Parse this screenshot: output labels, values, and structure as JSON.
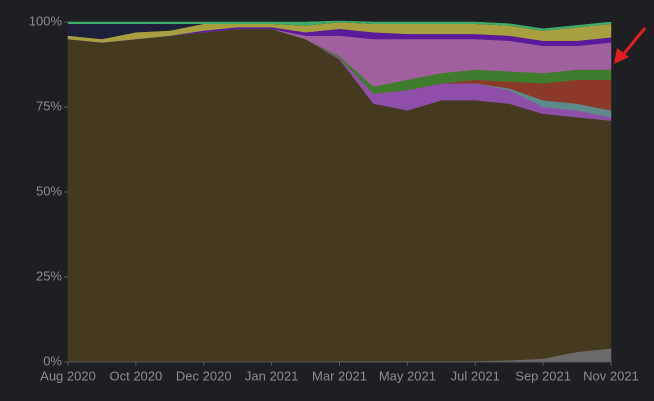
{
  "chart_data": {
    "type": "stacked_area",
    "categories": [
      "Aug 2020",
      null,
      "Oct 2020",
      null,
      "Dec 2020",
      null,
      "Jan 2021",
      null,
      "Mar 2021",
      null,
      "May 2021",
      null,
      "Jul 2021",
      null,
      "Sep 2021",
      null,
      "Nov 2021"
    ],
    "ylim": [
      0,
      100
    ],
    "yticks": [
      {
        "value": 0,
        "label": "0%"
      },
      {
        "value": 25,
        "label": "25%"
      },
      {
        "value": 50,
        "label": "50%"
      },
      {
        "value": 75,
        "label": "75%"
      },
      {
        "value": 100,
        "label": "100%"
      }
    ],
    "series": [
      {
        "color": "#6b6a66",
        "values": [
          0,
          0,
          0,
          0,
          0,
          0,
          0,
          0,
          0.3,
          0.3,
          0.3,
          0.3,
          0.3,
          0.5,
          1,
          3,
          4
        ]
      },
      {
        "color": "#433a1f",
        "values": [
          95,
          94,
          95,
          96,
          97,
          98,
          98,
          95,
          88.7,
          75.7,
          73.7,
          76.7,
          76.7,
          75.5,
          72,
          69,
          67
        ]
      },
      {
        "color": "#8e4fa8",
        "values": [
          0,
          0,
          0,
          0,
          0,
          0,
          0,
          0,
          0.5,
          3,
          6,
          5,
          5,
          4,
          2,
          2,
          1
        ]
      },
      {
        "color": "#5f8a8c",
        "values": [
          0,
          0,
          0,
          0,
          0,
          0,
          0,
          0,
          0,
          0,
          0,
          0,
          0,
          0.5,
          2,
          2,
          2
        ]
      },
      {
        "color": "#8b3a2a",
        "values": [
          0,
          0,
          0,
          0,
          0,
          0,
          0,
          0,
          0,
          0,
          0,
          0,
          1,
          2,
          5,
          7,
          9
        ]
      },
      {
        "color": "#3f7d2c",
        "values": [
          0,
          0,
          0,
          0,
          0,
          0,
          0,
          0,
          0.5,
          2,
          3,
          3,
          3,
          3,
          3,
          3,
          3
        ]
      },
      {
        "color": "#a0609e",
        "values": [
          0,
          0,
          0,
          0,
          0,
          0,
          0,
          1,
          6,
          14,
          12,
          10,
          9,
          9,
          8,
          7,
          8
        ]
      },
      {
        "color": "#5a1a9a",
        "values": [
          0,
          0,
          0,
          0,
          0.5,
          0.5,
          0.5,
          1,
          2,
          2,
          1.5,
          1.5,
          1.5,
          1.5,
          1.5,
          1.5,
          1.5
        ]
      },
      {
        "color": "#a8a040",
        "values": [
          1,
          1,
          2,
          1.5,
          2,
          1,
          1,
          2,
          2,
          2.5,
          3,
          3,
          3,
          3,
          3,
          4,
          4
        ]
      },
      {
        "color": "#1c2038",
        "values": [
          3.5,
          4.5,
          2.5,
          2,
          0,
          0,
          0,
          0,
          0,
          0,
          0,
          0,
          0,
          0,
          0,
          0,
          0
        ]
      },
      {
        "color": "#3fae6a",
        "values": [
          0.5,
          0.5,
          0.5,
          0.5,
          0.5,
          0.5,
          0.5,
          1,
          0.3,
          0.5,
          0.5,
          0.5,
          0.5,
          0.5,
          0.5,
          0.5,
          0.5
        ]
      }
    ]
  }
}
